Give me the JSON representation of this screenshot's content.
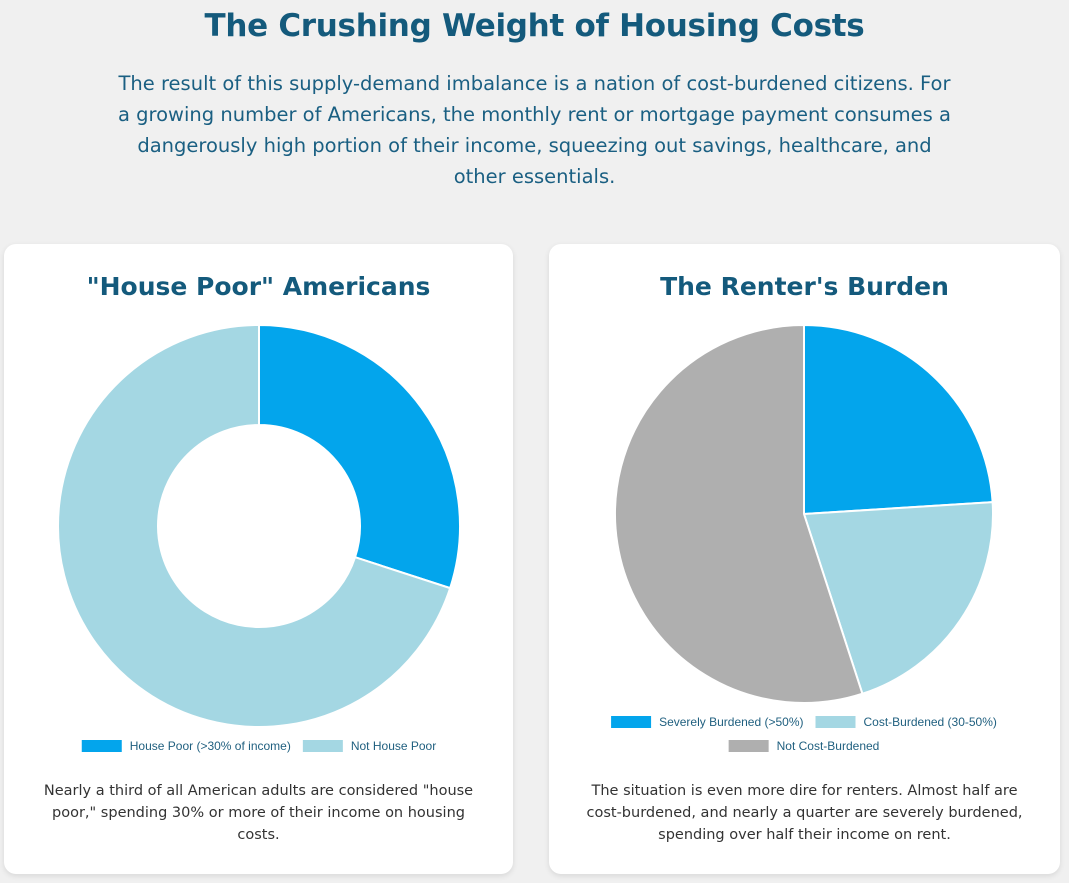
{
  "page": {
    "title": "The Crushing Weight of Housing Costs",
    "intro": "The result of this supply-demand imbalance is a nation of cost-burdened citizens. For a growing number of Americans, the monthly rent or mortgage payment consumes a dangerously high portion of their income, squeezing out savings, healthcare, and other essentials."
  },
  "cards": {
    "house": {
      "caption": "Nearly a third of all American adults are considered \"house poor,\" spending 30% or more of their income on housing costs."
    },
    "renter": {
      "caption": "The situation is even more dire for renters. Almost half are cost-burdened, and nearly a quarter are severely burdened, spending over half their income on rent."
    }
  },
  "chart_data": [
    {
      "type": "pie",
      "variant": "doughnut",
      "title": "\"House Poor\" Americans",
      "legend_position": "bottom",
      "categories": [
        "House Poor (>30% of income)",
        "Not House Poor"
      ],
      "values": [
        30,
        70
      ],
      "colors": [
        "#03a5ec",
        "#a4d7e3"
      ]
    },
    {
      "type": "pie",
      "title": "The Renter's Burden",
      "legend_position": "bottom",
      "categories": [
        "Severely Burdened (>50%)",
        "Cost-Burdened (30-50%)",
        "Not Cost-Burdened"
      ],
      "values": [
        24,
        21,
        55
      ],
      "colors": [
        "#03a5ec",
        "#a4d7e3",
        "#afafaf"
      ]
    }
  ]
}
